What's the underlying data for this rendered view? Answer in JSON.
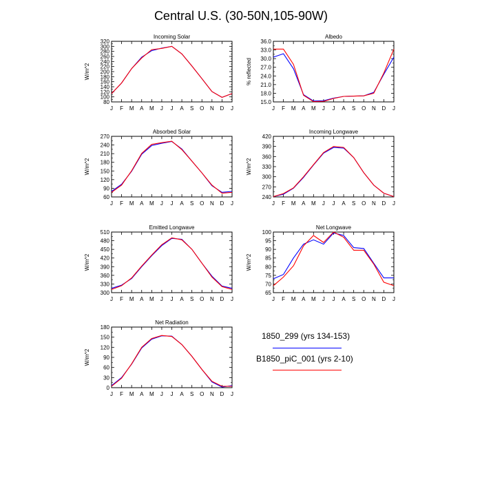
{
  "title": "Central U.S. (30-50N,105-90W)",
  "months": [
    "J",
    "F",
    "M",
    "A",
    "M",
    "J",
    "J",
    "A",
    "S",
    "O",
    "N",
    "D",
    "J"
  ],
  "colors": {
    "blue": "#0000ff",
    "red": "#ff0000"
  },
  "legend": [
    {
      "label": "1850_299 (yrs 134-153)",
      "color": "#0000ff"
    },
    {
      "label": "B1850_piC_001 (yrs 2-10)",
      "color": "#ff0000"
    }
  ],
  "chart_data": [
    {
      "type": "line",
      "title": "Incoming Solar",
      "ylabel": "W/m^2",
      "ylim": [
        80,
        320
      ],
      "yticks": [
        "80",
        "100",
        "120",
        "140",
        "160",
        "180",
        "200",
        "220",
        "240",
        "260",
        "280",
        "300",
        "320"
      ],
      "x": [
        "J",
        "F",
        "M",
        "A",
        "M",
        "J",
        "J",
        "A",
        "S",
        "O",
        "N",
        "D",
        "J"
      ],
      "series": [
        {
          "name": "1850_299 (yrs 134-153)",
          "color": "#0000ff",
          "values": [
            113,
            155,
            212,
            257,
            283,
            293,
            300,
            270,
            222,
            172,
            121,
            98,
            113
          ]
        },
        {
          "name": "B1850_piC_001 (yrs 2-10)",
          "color": "#ff0000",
          "values": [
            113,
            155,
            212,
            254,
            287,
            292,
            300,
            270,
            222,
            172,
            121,
            98,
            113
          ]
        }
      ]
    },
    {
      "type": "line",
      "title": "Albedo",
      "ylabel": "% reflected",
      "ylim": [
        15,
        36
      ],
      "yticks": [
        "15.0",
        "18.0",
        "21.0",
        "24.0",
        "27.0",
        "30.0",
        "33.0",
        "36.0"
      ],
      "x": [
        "J",
        "F",
        "M",
        "A",
        "M",
        "J",
        "J",
        "A",
        "S",
        "O",
        "N",
        "D",
        "J"
      ],
      "series": [
        {
          "name": "1850_299 (yrs 134-153)",
          "color": "#0000ff",
          "values": [
            30.5,
            31.7,
            26.5,
            17.5,
            15.3,
            15.4,
            16.3,
            16.9,
            17.0,
            17.1,
            18.3,
            24.6,
            30.5
          ]
        },
        {
          "name": "B1850_piC_001 (yrs 2-10)",
          "color": "#ff0000",
          "values": [
            33.3,
            33.3,
            28.0,
            17.3,
            15.1,
            15.2,
            16.2,
            16.9,
            17.0,
            17.1,
            18.0,
            25.0,
            33.3
          ]
        }
      ]
    },
    {
      "type": "line",
      "title": "Absorbed Solar",
      "ylabel": "W/m^2",
      "ylim": [
        60,
        270
      ],
      "yticks": [
        "60",
        "90",
        "120",
        "150",
        "180",
        "210",
        "240",
        "270"
      ],
      "x": [
        "J",
        "F",
        "M",
        "A",
        "M",
        "J",
        "J",
        "A",
        "S",
        "O",
        "N",
        "D",
        "J"
      ],
      "series": [
        {
          "name": "1850_299 (yrs 134-153)",
          "color": "#0000ff",
          "values": [
            79,
            104,
            149,
            208,
            238,
            246,
            252,
            226,
            184,
            143,
            99,
            76,
            79
          ]
        },
        {
          "name": "B1850_piC_001 (yrs 2-10)",
          "color": "#ff0000",
          "values": [
            76,
            101,
            151,
            211,
            242,
            248,
            253,
            224,
            184,
            143,
            101,
            73,
            76
          ]
        }
      ]
    },
    {
      "type": "line",
      "title": "Incoming Longwave",
      "ylabel": "W/m^2",
      "ylim": [
        240,
        420
      ],
      "yticks": [
        "240",
        "270",
        "300",
        "330",
        "360",
        "390",
        "420"
      ],
      "x": [
        "J",
        "F",
        "M",
        "A",
        "M",
        "J",
        "J",
        "A",
        "S",
        "O",
        "N",
        "D",
        "J"
      ],
      "series": [
        {
          "name": "1850_299 (yrs 134-153)",
          "color": "#0000ff",
          "values": [
            241,
            248,
            266,
            298,
            335,
            370,
            387,
            385,
            357,
            312,
            275,
            251,
            241
          ]
        },
        {
          "name": "B1850_piC_001 (yrs 2-10)",
          "color": "#ff0000",
          "values": [
            241,
            250,
            267,
            300,
            336,
            372,
            390,
            387,
            357,
            312,
            275,
            251,
            241
          ]
        }
      ]
    },
    {
      "type": "line",
      "title": "Emitted Longwave",
      "ylabel": "W/m^2",
      "ylim": [
        300,
        510
      ],
      "yticks": [
        "300",
        "330",
        "360",
        "390",
        "420",
        "450",
        "480",
        "510"
      ],
      "x": [
        "J",
        "F",
        "M",
        "A",
        "M",
        "J",
        "J",
        "A",
        "S",
        "O",
        "N",
        "D",
        "J"
      ],
      "series": [
        {
          "name": "1850_299 (yrs 134-153)",
          "color": "#0000ff",
          "values": [
            315,
            326,
            349,
            390,
            428,
            463,
            488,
            485,
            450,
            402,
            357,
            323,
            315
          ]
        },
        {
          "name": "B1850_piC_001 (yrs 2-10)",
          "color": "#ff0000",
          "values": [
            311,
            324,
            351,
            392,
            430,
            466,
            490,
            483,
            450,
            402,
            354,
            321,
            311
          ]
        }
      ]
    },
    {
      "type": "line",
      "title": "Net Longwave",
      "ylabel": "W/m^2",
      "ylim": [
        65,
        100
      ],
      "yticks": [
        "65",
        "70",
        "75",
        "80",
        "85",
        "90",
        "95",
        "100"
      ],
      "x": [
        "J",
        "F",
        "M",
        "A",
        "M",
        "J",
        "J",
        "A",
        "S",
        "O",
        "N",
        "D",
        "J"
      ],
      "series": [
        {
          "name": "1850_299 (yrs 134-153)",
          "color": "#0000ff",
          "values": [
            73,
            75.5,
            85,
            93,
            95.5,
            93,
            99.5,
            98,
            91,
            90.5,
            82,
            73.5,
            73.5
          ]
        },
        {
          "name": "B1850_piC_001 (yrs 2-10)",
          "color": "#ff0000",
          "values": [
            69,
            74,
            80.5,
            92,
            98,
            94,
            100,
            97,
            89.5,
            89.5,
            81.5,
            71,
            69
          ]
        }
      ]
    },
    {
      "type": "line",
      "title": "Net Radiation",
      "ylabel": "W/m^2",
      "ylim": [
        0,
        180
      ],
      "yticks": [
        "0",
        "30",
        "60",
        "90",
        "120",
        "150",
        "180"
      ],
      "x": [
        "J",
        "F",
        "M",
        "A",
        "M",
        "J",
        "J",
        "A",
        "S",
        "O",
        "N",
        "D",
        "J"
      ],
      "series": [
        {
          "name": "1850_299 (yrs 134-153)",
          "color": "#0000ff",
          "values": [
            6,
            30,
            70,
            118,
            144,
            154,
            153,
            128,
            93,
            54,
            17,
            2,
            6
          ]
        },
        {
          "name": "B1850_piC_001 (yrs 2-10)",
          "color": "#ff0000",
          "values": [
            4,
            28,
            71,
            120,
            146,
            155,
            152,
            128,
            93,
            54,
            19,
            4,
            4
          ]
        }
      ]
    }
  ]
}
